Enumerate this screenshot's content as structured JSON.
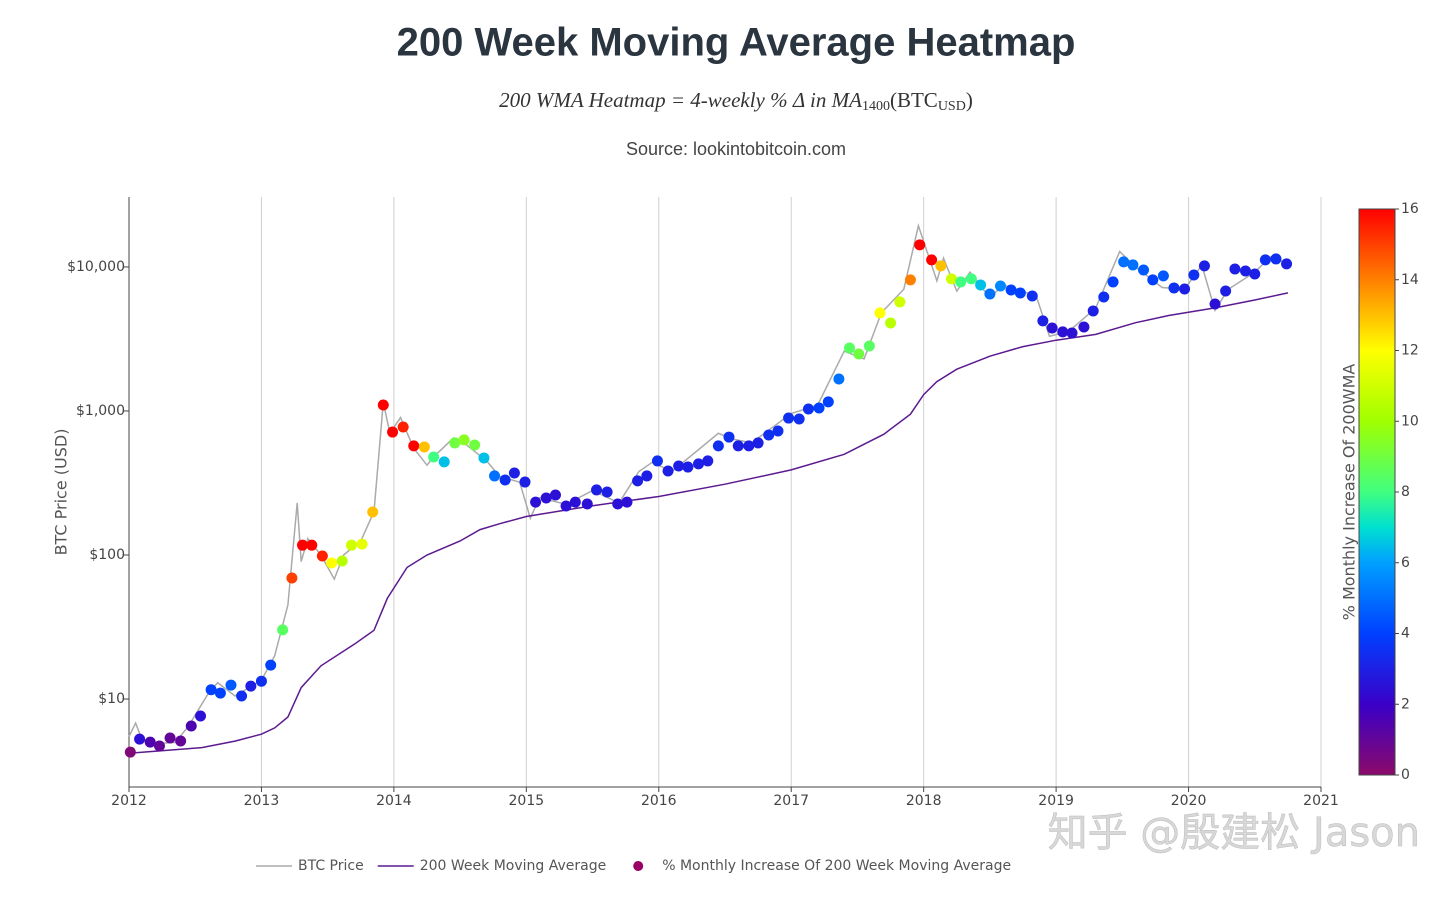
{
  "chart_data": {
    "type": "scatter",
    "title": "200 Week Moving Average Heatmap",
    "subtitle_parts": [
      "200 WMA Heatmap = 4-weekly % Δ in MA",
      "1400",
      "(BTC",
      "USD",
      ")"
    ],
    "source": "Source: lookintobitcoin.com",
    "watermark": "知乎 @殷建松 Jason",
    "y_label": "BTC Price (USD)",
    "log_y": true,
    "grid_x": true,
    "xlim": [
      2012,
      2021
    ],
    "xticks": [
      2012,
      2013,
      2014,
      2015,
      2016,
      2017,
      2018,
      2019,
      2020,
      2021
    ],
    "ylim": [
      2.45,
      30600
    ],
    "yticks": [
      {
        "value": 10,
        "label": "$10"
      },
      {
        "value": 100,
        "label": "$100"
      },
      {
        "value": 1000,
        "label": "$1,000"
      },
      {
        "value": 10000,
        "label": "$10,000"
      }
    ],
    "colorbar": {
      "title": "% Monthly Increase Of 200WMA",
      "clim": [
        0,
        16
      ],
      "ticks": [
        0,
        2,
        4,
        6,
        8,
        10,
        12,
        14,
        16
      ],
      "colorscale": [
        [
          0,
          "#8b0a6a"
        ],
        [
          2,
          "#3a00c8"
        ],
        [
          4,
          "#0040ff"
        ],
        [
          6,
          "#00a0ff"
        ],
        [
          7,
          "#00e0d0"
        ],
        [
          8,
          "#40ff80"
        ],
        [
          10,
          "#a0ff00"
        ],
        [
          12,
          "#ffff00"
        ],
        [
          14,
          "#ff8000"
        ],
        [
          16,
          "#ff0000"
        ]
      ]
    },
    "series": [
      {
        "name": "BTC Price",
        "mode": "line",
        "color": "#aaaaaa",
        "x": [
          2012.0,
          2012.05,
          2012.1,
          2012.2,
          2012.35,
          2012.45,
          2012.6,
          2012.67,
          2012.8,
          2013.0,
          2013.1,
          2013.2,
          2013.27,
          2013.3,
          2013.35,
          2013.45,
          2013.55,
          2013.62,
          2013.75,
          2013.85,
          2013.92,
          2013.97,
          2014.05,
          2014.15,
          2014.25,
          2014.3,
          2014.45,
          2014.55,
          2014.7,
          2014.8,
          2014.95,
          2015.03,
          2015.1,
          2015.3,
          2015.5,
          2015.7,
          2015.85,
          2015.95,
          2016.1,
          2016.45,
          2016.55,
          2016.7,
          2017.0,
          2017.2,
          2017.4,
          2017.55,
          2017.68,
          2017.85,
          2017.96,
          2018.1,
          2018.15,
          2018.25,
          2018.35,
          2018.5,
          2018.6,
          2018.85,
          2018.95,
          2019.1,
          2019.3,
          2019.48,
          2019.6,
          2019.8,
          2019.97,
          2020.1,
          2020.2,
          2020.3,
          2020.5,
          2020.62,
          2020.75
        ],
        "values": [
          5.5,
          6.8,
          5.2,
          4.9,
          5.0,
          6.5,
          11,
          13,
          10.5,
          13.5,
          20,
          45,
          230,
          90,
          130,
          100,
          68,
          100,
          125,
          200,
          1150,
          700,
          900,
          550,
          420,
          480,
          650,
          580,
          450,
          350,
          320,
          180,
          250,
          225,
          280,
          230,
          380,
          440,
          380,
          700,
          640,
          600,
          960,
          1100,
          2600,
          2300,
          4800,
          7000,
          19300,
          8000,
          11500,
          6800,
          9200,
          6100,
          7500,
          6300,
          3300,
          3600,
          5200,
          12800,
          10000,
          7200,
          7000,
          10300,
          5000,
          7000,
          9200,
          11800,
          10500
        ]
      },
      {
        "name": "200 Week Moving Average",
        "mode": "line",
        "color": "#5b1a8f",
        "x": [
          2012.0,
          2012.55,
          2012.8,
          2013.0,
          2013.1,
          2013.2,
          2013.3,
          2013.45,
          2013.7,
          2013.85,
          2013.95,
          2014.1,
          2014.25,
          2014.5,
          2014.65,
          2014.8,
          2015.0,
          2015.5,
          2016.0,
          2016.5,
          2017.0,
          2017.4,
          2017.7,
          2017.9,
          2018.0,
          2018.1,
          2018.25,
          2018.5,
          2018.75,
          2019.0,
          2019.3,
          2019.6,
          2019.85,
          2020.2,
          2020.5,
          2020.75
        ],
        "values": [
          4.2,
          4.6,
          5.1,
          5.7,
          6.3,
          7.5,
          12,
          17,
          24,
          30,
          50,
          82,
          100,
          125,
          150,
          165,
          185,
          220,
          255,
          310,
          390,
          500,
          690,
          950,
          1300,
          1600,
          1950,
          2400,
          2800,
          3100,
          3400,
          4100,
          4600,
          5200,
          5900,
          6600
        ]
      },
      {
        "name": "% Monthly Increase Of 200 Week Moving Average",
        "mode": "markers",
        "color": "#990066",
        "x": [
          2012.01,
          2012.08,
          2012.16,
          2012.23,
          2012.31,
          2012.39,
          2012.47,
          2012.54,
          2012.62,
          2012.69,
          2012.77,
          2012.85,
          2012.92,
          2013.0,
          2013.07,
          2013.16,
          2013.23,
          2013.31,
          2013.38,
          2013.46,
          2013.53,
          2013.61,
          2013.68,
          2013.76,
          2013.84,
          2013.92,
          2013.99,
          2014.07,
          2014.15,
          2014.23,
          2014.3,
          2014.38,
          2014.46,
          2014.53,
          2014.61,
          2014.68,
          2014.76,
          2014.84,
          2014.91,
          2014.99,
          2015.07,
          2015.15,
          2015.22,
          2015.3,
          2015.37,
          2015.46,
          2015.53,
          2015.61,
          2015.69,
          2015.76,
          2015.84,
          2015.91,
          2015.99,
          2016.07,
          2016.15,
          2016.22,
          2016.3,
          2016.37,
          2016.45,
          2016.53,
          2016.6,
          2016.68,
          2016.75,
          2016.83,
          2016.9,
          2016.98,
          2017.06,
          2017.13,
          2017.21,
          2017.28,
          2017.36,
          2017.44,
          2017.51,
          2017.59,
          2017.67,
          2017.75,
          2017.82,
          2017.9,
          2017.97,
          2018.06,
          2018.13,
          2018.21,
          2018.28,
          2018.36,
          2018.43,
          2018.5,
          2018.58,
          2018.66,
          2018.73,
          2018.82,
          2018.9,
          2018.97,
          2019.05,
          2019.12,
          2019.21,
          2019.28,
          2019.36,
          2019.43,
          2019.51,
          2019.58,
          2019.66,
          2019.73,
          2019.81,
          2019.89,
          2019.97,
          2020.04,
          2020.12,
          2020.2,
          2020.28,
          2020.35,
          2020.43,
          2020.5,
          2020.58,
          2020.66,
          2020.74
        ],
        "values": [
          4.28,
          5.27,
          5.02,
          4.72,
          5.36,
          5.11,
          6.5,
          7.62,
          11.6,
          11.0,
          12.5,
          10.5,
          12.3,
          13.3,
          17.2,
          30.2,
          69.2,
          117,
          117,
          98.4,
          88,
          90.8,
          117,
          119,
          199,
          1101,
          714,
          774,
          572,
          562,
          479,
          443,
          600,
          630,
          581,
          472,
          354,
          332,
          371,
          321,
          233,
          249,
          261,
          219,
          233,
          226,
          283,
          274,
          226,
          233,
          327,
          354,
          450,
          383,
          415,
          408,
          429,
          450,
          572,
          659,
          572,
          572,
          600,
          681,
          726,
          893,
          879,
          1032,
          1049,
          1156,
          1668,
          2739,
          2488,
          2826,
          4797,
          4083,
          5717,
          8128,
          14230,
          11190,
          10170,
          8260,
          7870,
          8260,
          7500,
          6490,
          7380,
          6920,
          6590,
          6290,
          4220,
          3770,
          3540,
          3480,
          3830,
          4950,
          6190,
          7870,
          10840,
          10330,
          9530,
          8130,
          8670,
          7150,
          7030,
          8790,
          10170,
          5530,
          6810,
          9680,
          9380,
          8940,
          11190,
          11370,
          10500
        ],
        "color_values": [
          0.3,
          2.5,
          1.5,
          1,
          1,
          1,
          1.5,
          2.5,
          4,
          4,
          4.5,
          3.5,
          3,
          3.5,
          4,
          8.5,
          15,
          16,
          16,
          15.5,
          12,
          10.5,
          11,
          11.5,
          13,
          16,
          16,
          15.5,
          16,
          13,
          8,
          6.5,
          9,
          9.5,
          9,
          6.5,
          5,
          3.5,
          3,
          3,
          2.5,
          2.5,
          2.5,
          2.5,
          2.5,
          2.5,
          3,
          3,
          2.5,
          2.5,
          3,
          3,
          3.5,
          3,
          3,
          3,
          3,
          3,
          3.5,
          3.5,
          3,
          3,
          3,
          3.5,
          3.5,
          3.5,
          3.5,
          3.5,
          4,
          4,
          5,
          8.5,
          9,
          8.5,
          12,
          10.5,
          11,
          14,
          16,
          16,
          13,
          11,
          8,
          8,
          6.5,
          5,
          5.5,
          4,
          4,
          3.5,
          3,
          2.5,
          2.5,
          2.5,
          2.5,
          3,
          3.5,
          4,
          5,
          5,
          4.5,
          4,
          4.5,
          3.5,
          3,
          3.5,
          3,
          2.5,
          3,
          3,
          3,
          3,
          3.5,
          3.5,
          3
        ]
      }
    ]
  }
}
